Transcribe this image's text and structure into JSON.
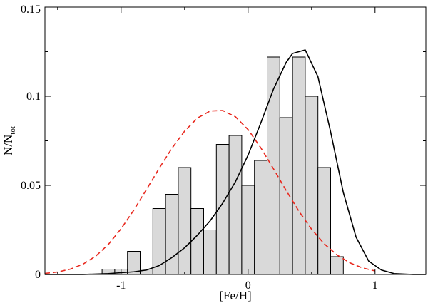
{
  "chart_data": {
    "type": "bar",
    "title": "",
    "xlabel": "[Fe/H]",
    "ylabel": {
      "main": "N/N",
      "subscript": "tot"
    },
    "xlim": [
      -1.6,
      1.4
    ],
    "ylim": [
      0,
      0.15
    ],
    "x_ticks": [
      {
        "value": -1,
        "label": "-1"
      },
      {
        "value": 0,
        "label": "0"
      },
      {
        "value": 1,
        "label": "1"
      }
    ],
    "y_ticks": [
      {
        "value": 0,
        "label": "0"
      },
      {
        "value": 0.05,
        "label": "0.05"
      },
      {
        "value": 0.1,
        "label": "0.1"
      },
      {
        "value": 0.15,
        "label": "0.15"
      }
    ],
    "histogram": {
      "bin_width": 0.1,
      "fill_color": "#d9d9d9",
      "edge_color": "#000000",
      "bins": [
        {
          "x0": -1.15,
          "value": 0.003
        },
        {
          "x0": -1.05,
          "value": 0.003
        },
        {
          "x0": -0.95,
          "value": 0.013
        },
        {
          "x0": -0.85,
          "value": 0.003
        },
        {
          "x0": -0.75,
          "value": 0.037
        },
        {
          "x0": -0.65,
          "value": 0.045
        },
        {
          "x0": -0.55,
          "value": 0.06
        },
        {
          "x0": -0.45,
          "value": 0.037
        },
        {
          "x0": -0.35,
          "value": 0.025
        },
        {
          "x0": -0.25,
          "value": 0.073
        },
        {
          "x0": -0.15,
          "value": 0.078
        },
        {
          "x0": -0.05,
          "value": 0.05
        },
        {
          "x0": 0.05,
          "value": 0.064
        },
        {
          "x0": 0.15,
          "value": 0.122
        },
        {
          "x0": 0.25,
          "value": 0.088
        },
        {
          "x0": 0.35,
          "value": 0.122
        },
        {
          "x0": 0.45,
          "value": 0.1
        },
        {
          "x0": 0.55,
          "value": 0.06
        },
        {
          "x0": 0.65,
          "value": 0.01
        }
      ]
    },
    "series": [
      {
        "style": "solid",
        "color": "#000000",
        "x": [
          -1.6,
          -1.3,
          -1.1,
          -1.0,
          -0.9,
          -0.8,
          -0.7,
          -0.6,
          -0.5,
          -0.4,
          -0.3,
          -0.2,
          -0.1,
          0.0,
          0.1,
          0.2,
          0.3,
          0.35,
          0.45,
          0.55,
          0.65,
          0.75,
          0.85,
          0.95,
          1.05,
          1.15,
          1.3,
          1.4
        ],
        "y": [
          0,
          0,
          0.0005,
          0.001,
          0.0015,
          0.0025,
          0.005,
          0.0095,
          0.015,
          0.022,
          0.03,
          0.04,
          0.052,
          0.067,
          0.085,
          0.104,
          0.119,
          0.124,
          0.126,
          0.111,
          0.08,
          0.046,
          0.021,
          0.0075,
          0.0025,
          0.0005,
          0,
          0
        ]
      },
      {
        "style": "dashed",
        "color": "#e8281e",
        "x": [
          -1.6,
          -1.5,
          -1.4,
          -1.3,
          -1.2,
          -1.1,
          -1.0,
          -0.9,
          -0.8,
          -0.7,
          -0.6,
          -0.5,
          -0.4,
          -0.3,
          -0.2,
          -0.1,
          0.0,
          0.1,
          0.2,
          0.3,
          0.4,
          0.5,
          0.6,
          0.7,
          0.8,
          0.9,
          1.0
        ],
        "y": [
          0.0006,
          0.0014,
          0.003,
          0.0058,
          0.0103,
          0.0169,
          0.0257,
          0.0361,
          0.0477,
          0.0596,
          0.0708,
          0.0804,
          0.0877,
          0.0917,
          0.092,
          0.0885,
          0.0813,
          0.0711,
          0.0593,
          0.0471,
          0.0355,
          0.0254,
          0.0172,
          0.011,
          0.0066,
          0.0037,
          0.002
        ]
      }
    ]
  }
}
